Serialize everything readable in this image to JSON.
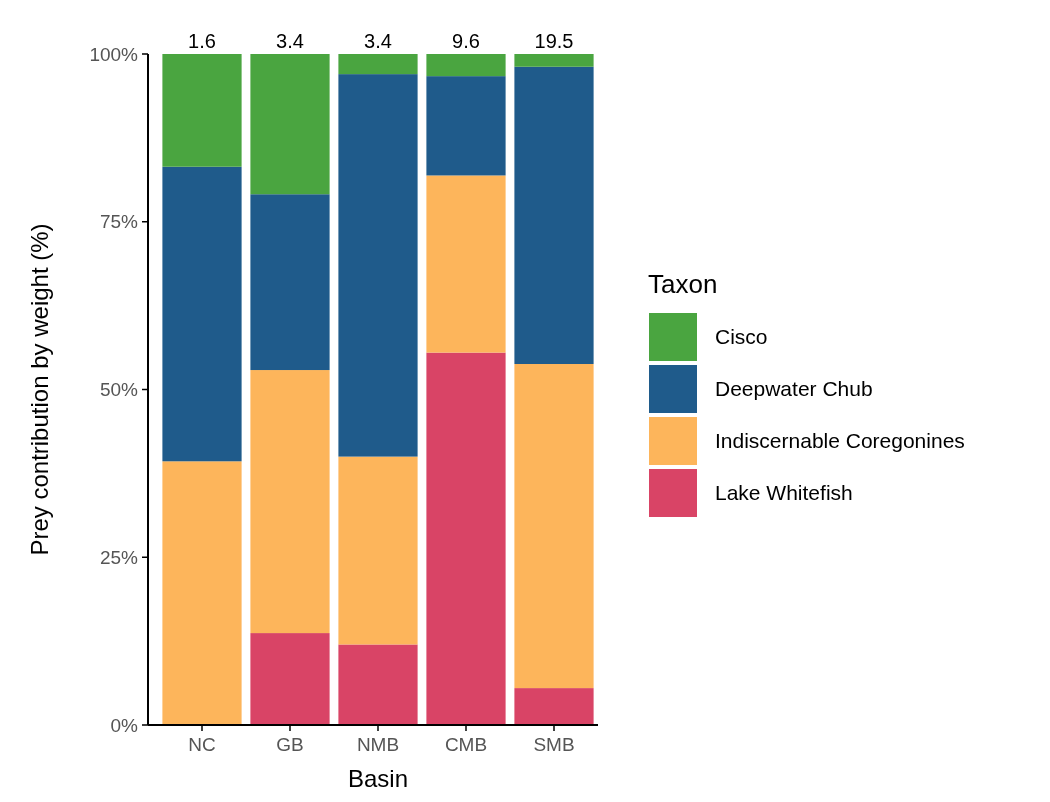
{
  "chart_data": {
    "type": "bar",
    "stacked": true,
    "xlabel": "Basin",
    "ylabel": "Prey contribution by weight (%)",
    "legend_title": "Taxon",
    "legend": "right",
    "grid": false,
    "categories": [
      "NC",
      "GB",
      "NMB",
      "CMB",
      "SMB"
    ],
    "ylim": [
      0,
      100
    ],
    "yticks": [
      {
        "value": 0,
        "label": "0%"
      },
      {
        "value": 25,
        "label": "25%"
      },
      {
        "value": 50,
        "label": "50%"
      },
      {
        "value": 75,
        "label": "75%"
      },
      {
        "value": 100,
        "label": "100%"
      }
    ],
    "annotations": [
      {
        "text": "1.6",
        "x": "NC",
        "y": 100
      },
      {
        "text": "3.4",
        "x": "GB",
        "y": 100
      },
      {
        "text": "3.4",
        "x": "NMB",
        "y": 100
      },
      {
        "text": "9.6",
        "x": "CMB",
        "y": 100
      },
      {
        "text": "19.5",
        "x": "SMB",
        "y": 100
      }
    ],
    "series": [
      {
        "name": "Lake Whitefish",
        "color": "#d94466",
        "values": [
          0,
          13.7,
          12.0,
          55.5,
          5.5
        ]
      },
      {
        "name": "Indiscernable Coregonines",
        "color": "#fdb55b",
        "values": [
          39.3,
          39.2,
          28.0,
          26.4,
          48.3
        ]
      },
      {
        "name": "Deepwater Chub",
        "color": "#1f5b8b",
        "values": [
          43.9,
          26.2,
          57.0,
          14.8,
          44.3
        ]
      },
      {
        "name": "Cisco",
        "color": "#4aa540",
        "values": [
          16.8,
          20.9,
          3.0,
          3.3,
          1.9
        ]
      }
    ]
  }
}
